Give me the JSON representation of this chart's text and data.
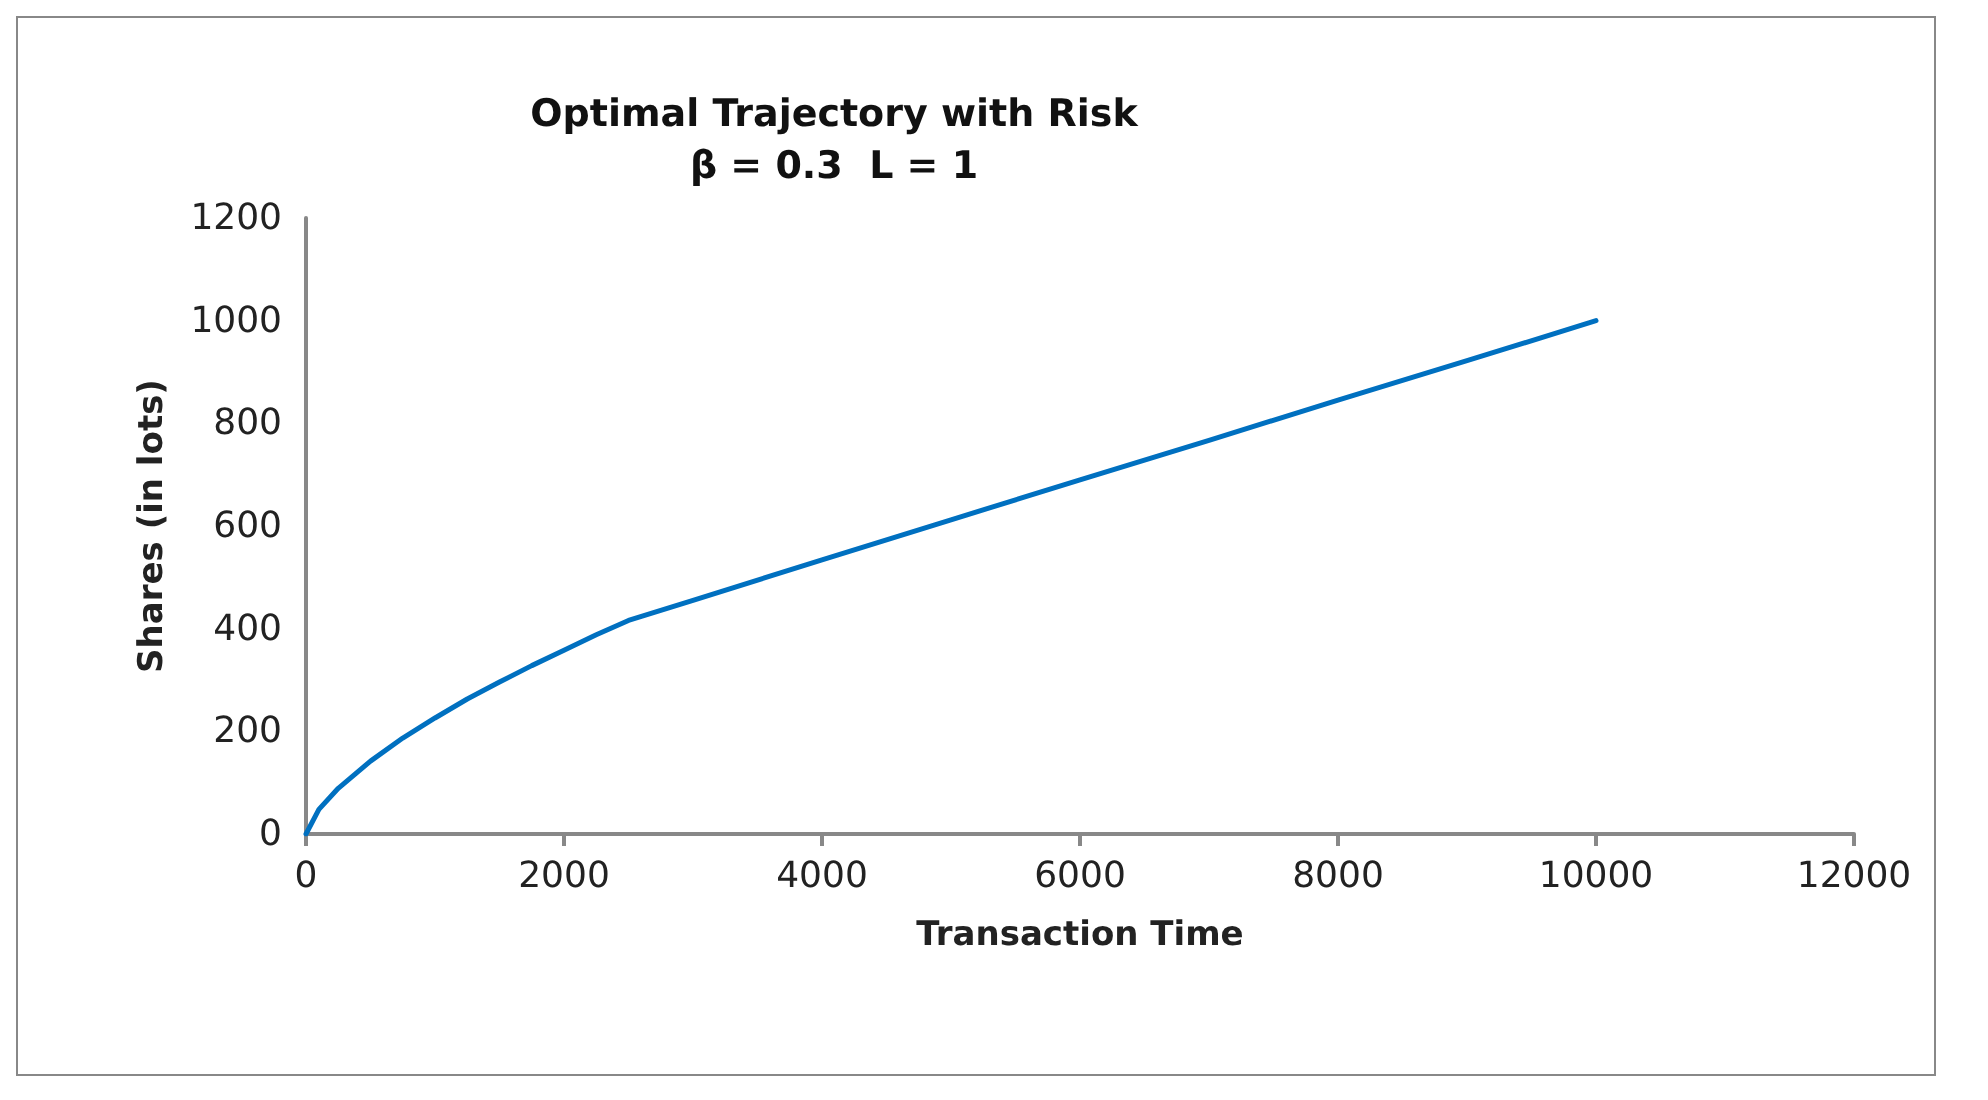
{
  "chart_data": {
    "type": "line",
    "title": "Optimal Trajectory with Risk\nβ = 0.3  L = 1",
    "xlabel": "Transaction Time",
    "ylabel": "Shares (in lots)",
    "x": [
      0,
      100,
      250,
      500,
      750,
      1000,
      1250,
      1500,
      1750,
      2000,
      2250,
      2500,
      3000,
      4000,
      5000,
      6000,
      7000,
      8000,
      9000,
      10000
    ],
    "series": [
      {
        "color": "#0070c0",
        "values": [
          0,
          48,
          89,
          142,
          187,
          226,
          263,
          296,
          328,
          358,
          388,
          416,
          455,
          534,
          612,
          690,
          767,
          845,
          922,
          1000
        ]
      }
    ],
    "xlim": [
      0,
      12000
    ],
    "xticks": [
      0,
      2000,
      4000,
      6000,
      8000,
      10000,
      12000
    ],
    "ylim": [
      0,
      1200
    ],
    "yticks": [
      0,
      200,
      400,
      600,
      800,
      1000,
      1200
    ],
    "grid": false,
    "marker": "none",
    "line_style": "solid"
  }
}
